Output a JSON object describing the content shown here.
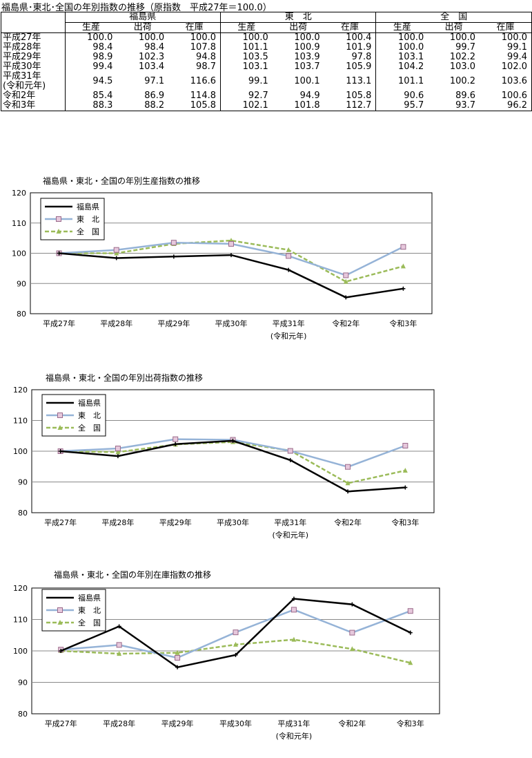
{
  "table": {
    "title": "福島県･東北･全国の年別指数の推移（原指数　平成27年＝100.0）",
    "groups": [
      "福島県",
      "東　北",
      "全　国"
    ],
    "subheaders": [
      "生産",
      "出荷",
      "在庫"
    ],
    "rows": [
      {
        "label": "平成27年",
        "values": [
          "100.0",
          "100.0",
          "100.0",
          "100.0",
          "100.0",
          "100.4",
          "100.0",
          "100.0",
          "100.0"
        ]
      },
      {
        "label": "平成28年",
        "values": [
          "98.4",
          "98.4",
          "107.8",
          "101.1",
          "100.9",
          "101.9",
          "100.0",
          "99.7",
          "99.1"
        ]
      },
      {
        "label": "平成29年",
        "values": [
          "98.9",
          "102.3",
          "94.8",
          "103.5",
          "103.9",
          "97.8",
          "103.1",
          "102.2",
          "99.4"
        ]
      },
      {
        "label": "平成30年",
        "values": [
          "99.4",
          "103.4",
          "98.7",
          "103.1",
          "103.7",
          "105.9",
          "104.2",
          "103.0",
          "102.0"
        ]
      },
      {
        "label": "平成31年",
        "label2": "(令和元年)",
        "values": [
          "94.5",
          "97.1",
          "116.6",
          "99.1",
          "100.1",
          "113.1",
          "101.1",
          "100.2",
          "103.6"
        ]
      },
      {
        "label": "令和2年",
        "values": [
          "85.4",
          "86.9",
          "114.8",
          "92.7",
          "94.9",
          "105.8",
          "90.6",
          "89.6",
          "100.6"
        ]
      },
      {
        "label": "令和3年",
        "values": [
          "88.3",
          "88.2",
          "105.8",
          "102.1",
          "101.8",
          "112.7",
          "95.7",
          "93.7",
          "96.2"
        ]
      }
    ]
  },
  "colors": {
    "fukushima": "#000000",
    "tohoku": "#95B3D7",
    "zenkoku": "#9BBB59",
    "marker_tohoku": "#C0A0B0"
  },
  "chart_data": [
    {
      "type": "line",
      "title": "福島県・東北・全国の年別生産指数の推移",
      "categories": [
        "平成27年",
        "平成28年",
        "平成29年",
        "平成30年",
        "平成31年",
        "令和2年",
        "令和3年"
      ],
      "category_sub": [
        "",
        "",
        "",
        "",
        "(令和元年)",
        "",
        ""
      ],
      "ylim": [
        80,
        120
      ],
      "yticks": [
        80,
        90,
        100,
        110,
        120
      ],
      "legend": "top-left",
      "series": [
        {
          "name": "福島県",
          "values": [
            100.0,
            98.4,
            98.9,
            99.4,
            94.5,
            85.4,
            88.3
          ]
        },
        {
          "name": "東　北",
          "values": [
            100.0,
            101.1,
            103.5,
            103.1,
            99.1,
            92.7,
            102.1
          ]
        },
        {
          "name": "全　国",
          "values": [
            100.0,
            100.0,
            103.1,
            104.2,
            101.1,
            90.6,
            95.7
          ]
        }
      ]
    },
    {
      "type": "line",
      "title": "福島県・東北・全国の年別出荷指数の推移",
      "categories": [
        "平成27年",
        "平成28年",
        "平成29年",
        "平成30年",
        "平成31年",
        "令和2年",
        "令和3年"
      ],
      "category_sub": [
        "",
        "",
        "",
        "",
        "(令和元年)",
        "",
        ""
      ],
      "ylim": [
        80,
        120
      ],
      "yticks": [
        80,
        90,
        100,
        110,
        120
      ],
      "legend": "top-left",
      "series": [
        {
          "name": "福島県",
          "values": [
            100.0,
            98.4,
            102.3,
            103.4,
            97.1,
            86.9,
            88.2
          ]
        },
        {
          "name": "東　北",
          "values": [
            100.0,
            100.9,
            103.9,
            103.7,
            100.1,
            94.9,
            101.8
          ]
        },
        {
          "name": "全　国",
          "values": [
            100.0,
            99.7,
            102.2,
            103.0,
            100.2,
            89.6,
            93.7
          ]
        }
      ]
    },
    {
      "type": "line",
      "title": "福島県・東北・全国の年別在庫指数の推移",
      "categories": [
        "平成27年",
        "平成28年",
        "平成29年",
        "平成30年",
        "平成31年",
        "令和2年",
        "令和3年"
      ],
      "category_sub": [
        "",
        "",
        "",
        "",
        "(令和元年)",
        "",
        ""
      ],
      "ylim": [
        80,
        120
      ],
      "yticks": [
        80,
        90,
        100,
        110,
        120
      ],
      "legend": "top-left",
      "series": [
        {
          "name": "福島県",
          "values": [
            100.0,
            107.8,
            94.8,
            98.7,
            116.6,
            114.8,
            105.8
          ]
        },
        {
          "name": "東　北",
          "values": [
            100.4,
            101.9,
            97.8,
            105.9,
            113.1,
            105.8,
            112.7
          ]
        },
        {
          "name": "全　国",
          "values": [
            100.0,
            99.1,
            99.4,
            102.0,
            103.6,
            100.6,
            96.2
          ]
        }
      ]
    }
  ]
}
